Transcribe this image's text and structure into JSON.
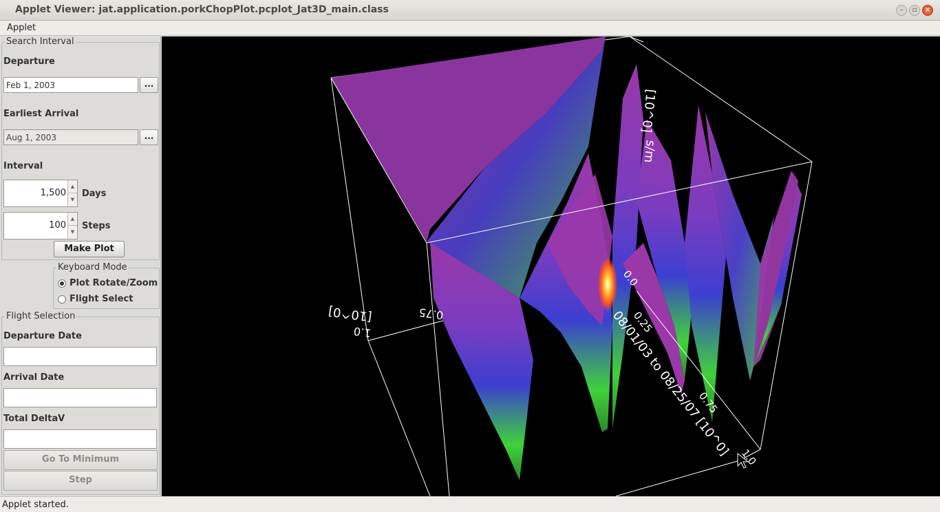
{
  "window": {
    "title": "Applet Viewer: jat.application.porkChopPlot.pcplot_Jat3D_main.class",
    "controls": [
      "minimize-icon",
      "maximize-icon",
      "close-icon"
    ]
  },
  "menubar": {
    "applet": "Applet"
  },
  "search_interval": {
    "legend": "Search Interval",
    "departure_label": "Departure",
    "departure_value": "Feb 1, 2003",
    "arrival_label": "Earliest Arrival",
    "arrival_value": "Aug 1, 2003",
    "chooser_label": "...",
    "interval_label": "Interval",
    "days_value": "1,500",
    "days_unit": "Days",
    "steps_value": "100",
    "steps_unit": "Steps",
    "make_plot": "Make Plot"
  },
  "keyboard_mode": {
    "legend": "Keyboard Mode",
    "option1": "Plot Rotate/Zoom",
    "option2": "Flight Select",
    "selected": "Plot Rotate/Zoom"
  },
  "flight_selection": {
    "legend": "Flight Selection",
    "departure_label": "Departure Date",
    "departure_value": "",
    "arrival_label": "Arrival Date",
    "arrival_value": "",
    "deltav_label": "Total DeltaV",
    "deltav_value": "",
    "go_min": "Go To Minimum",
    "step": "Step"
  },
  "plot": {
    "axis_label_left": "[10^0]",
    "tick_left_1": "1.0",
    "tick_left_2": "0.75",
    "axis_label_top": "[10^0]",
    "axis_label_top_tail": "s/m",
    "tick_front_0": "0.0",
    "tick_front_1": "0.25",
    "tick_front_3": "0.75",
    "tick_front_4": "1.0",
    "axis_label_front": "08/01/03 to 08/25/07 [10^0]",
    "accent_colors": [
      "#9a38a8",
      "#3b3fd0",
      "#3fd23a",
      "#ff6a1a"
    ]
  },
  "status": {
    "text": "Applet started."
  }
}
